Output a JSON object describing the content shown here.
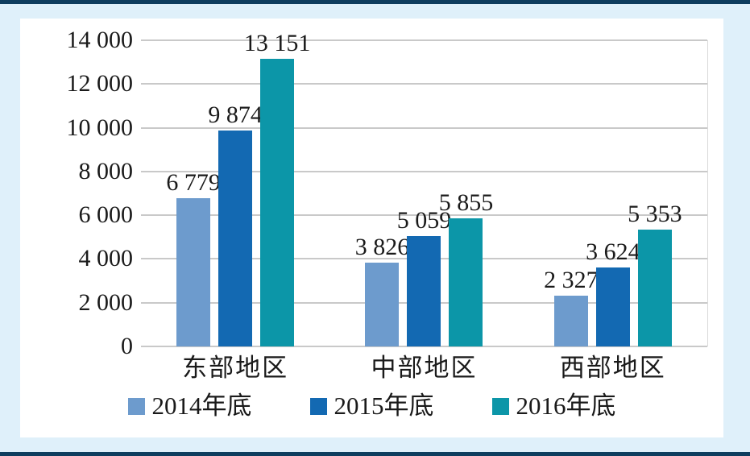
{
  "frame": {
    "background": "#DFF0FA",
    "rule_color": "#0E3D5E",
    "panel_background": "#FFFFFF",
    "gridline_color": "#C9C9C9",
    "text_color": "#1A1A1A"
  },
  "chart_data": {
    "type": "bar",
    "title": "",
    "categories": [
      "东部地区",
      "中部地区",
      "西部地区"
    ],
    "series": [
      {
        "name": "2014年底",
        "color": "#6D9BCD",
        "values": [
          6779,
          3826,
          2327
        ],
        "labels": [
          "6 779",
          "3 826",
          "2 327"
        ]
      },
      {
        "name": "2015年底",
        "color": "#1369B2",
        "values": [
          9874,
          5059,
          3624
        ],
        "labels": [
          "9 874",
          "5 059",
          "3 624"
        ]
      },
      {
        "name": "2016年底",
        "color": "#0C96A8",
        "values": [
          13151,
          5855,
          5353
        ],
        "labels": [
          "13 151",
          "5 855",
          "5 353"
        ]
      }
    ],
    "ylim": [
      0,
      14000
    ],
    "ytick_step": 2000,
    "yticks": [
      {
        "value": 0,
        "label": "0"
      },
      {
        "value": 2000,
        "label": "2 000"
      },
      {
        "value": 4000,
        "label": "4 000"
      },
      {
        "value": 6000,
        "label": "6 000"
      },
      {
        "value": 8000,
        "label": "8 000"
      },
      {
        "value": 10000,
        "label": "10 000"
      },
      {
        "value": 12000,
        "label": "12 000"
      },
      {
        "value": 14000,
        "label": "14 000"
      }
    ],
    "grid": true,
    "legend_position": "bottom"
  }
}
